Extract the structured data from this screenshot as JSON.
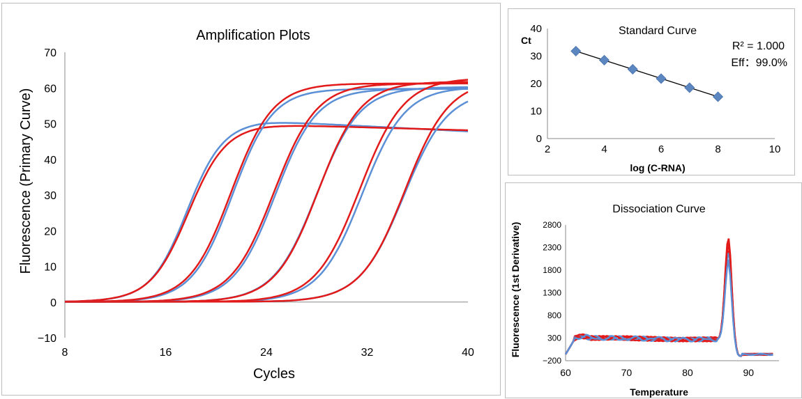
{
  "colors": {
    "blue": "#5b8fd6",
    "red": "#e21a1a",
    "marker": "#5b86c0",
    "fit": "#000000"
  },
  "chart_data": [
    {
      "type": "line",
      "title": "Amplification Plots",
      "xlabel": "Cycles",
      "ylabel": "Fluorescence (Primary Curve)",
      "xlim": [
        8,
        40
      ],
      "ylim": [
        -10,
        70
      ],
      "x_ticks": [
        "8",
        "16",
        "24",
        "32",
        "40"
      ],
      "y_ticks": [
        "70",
        "60",
        "50",
        "40",
        "30",
        "20",
        "10",
        "0",
        "−10"
      ],
      "series_params": [
        {
          "color": "blue",
          "midpoint": 17.7,
          "slope": 1.45,
          "plateau": 50.5,
          "decline": 0.18
        },
        {
          "color": "red",
          "midpoint": 17.8,
          "slope": 1.5,
          "plateau": 49.5,
          "decline": 0.1
        },
        {
          "color": "blue",
          "midpoint": 21.3,
          "slope": 1.6,
          "plateau": 59.5,
          "decline": 0.0
        },
        {
          "color": "red",
          "midpoint": 21.2,
          "slope": 1.65,
          "plateau": 61.0,
          "decline": 0.0
        },
        {
          "color": "blue",
          "midpoint": 24.7,
          "slope": 1.65,
          "plateau": 59.5,
          "decline": 0.0
        },
        {
          "color": "red",
          "midpoint": 24.6,
          "slope": 1.7,
          "plateau": 61.0,
          "decline": 0.0
        },
        {
          "color": "blue",
          "midpoint": 28.0,
          "slope": 1.7,
          "plateau": 60.0,
          "decline": 0.0
        },
        {
          "color": "red",
          "midpoint": 28.1,
          "slope": 1.7,
          "plateau": 61.5,
          "decline": 0.0
        },
        {
          "color": "blue",
          "midpoint": 31.6,
          "slope": 1.7,
          "plateau": 60.0,
          "decline": 0.0
        },
        {
          "color": "red",
          "midpoint": 31.4,
          "slope": 1.75,
          "plateau": 62.5,
          "decline": 0.0
        },
        {
          "color": "blue",
          "midpoint": 34.9,
          "slope": 1.75,
          "plateau": 59.0,
          "decline": 0.0
        },
        {
          "color": "red",
          "midpoint": 35.0,
          "slope": 1.75,
          "plateau": 62.0,
          "decline": 0.0
        }
      ]
    },
    {
      "type": "scatter",
      "title": "Standard Curve",
      "xlabel": "log (C-RNA)",
      "ylabel": "Ct",
      "xlim": [
        2,
        10
      ],
      "ylim": [
        0,
        40
      ],
      "x_ticks": [
        "2",
        "4",
        "6",
        "8",
        "10"
      ],
      "y_ticks": [
        "40",
        "30",
        "20",
        "10",
        "0"
      ],
      "points": [
        [
          3,
          31.8
        ],
        [
          4,
          28.5
        ],
        [
          5,
          25.2
        ],
        [
          6,
          21.8
        ],
        [
          7,
          18.5
        ],
        [
          8,
          15.2
        ]
      ],
      "fit_line": [
        [
          3,
          31.8
        ],
        [
          8,
          15.2
        ]
      ],
      "annotations": {
        "r2": "R² = 1.000",
        "eff": "Eff：99.0%"
      }
    },
    {
      "type": "line",
      "title": "Dissociation Curve",
      "xlabel": "Temperature",
      "ylabel": "Fluorescence (1st Derivative)",
      "xlim": [
        60,
        95
      ],
      "ylim": [
        -200,
        2800
      ],
      "x_ticks": [
        "60",
        "70",
        "80",
        "90"
      ],
      "y_ticks": [
        "2800",
        "2300",
        "1800",
        "1300",
        "800",
        "300",
        "−200"
      ],
      "peak_temperature": 86.7,
      "series_params": [
        {
          "color": "blue",
          "peak": 2050
        },
        {
          "color": "red",
          "peak": 2250
        },
        {
          "color": "red",
          "peak": 2520
        },
        {
          "color": "red",
          "peak": 2380
        },
        {
          "color": "blue",
          "peak": 2200
        },
        {
          "color": "red",
          "peak": 2450
        },
        {
          "color": "blue",
          "peak": 1980
        }
      ]
    }
  ]
}
